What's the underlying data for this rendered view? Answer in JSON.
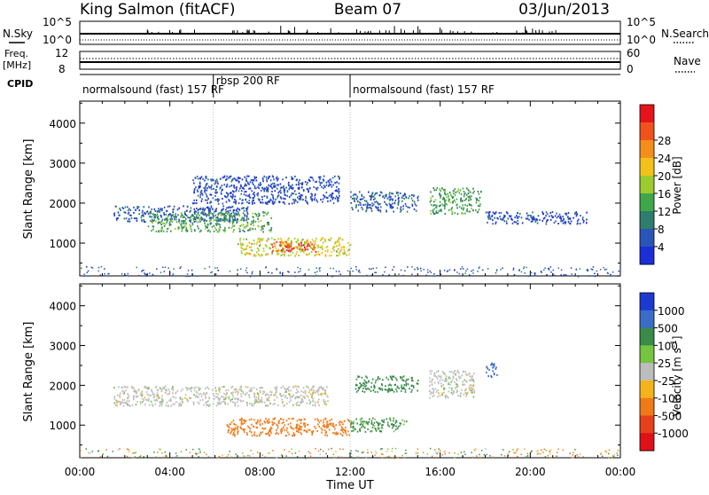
{
  "header": {
    "station": "King Salmon (fitACF)",
    "beam": "Beam 07",
    "date": "03/Jun/2013"
  },
  "panels": {
    "nsky_label": "N.Sky",
    "nsearch_label": "N.Search",
    "freq_label": "Freq.",
    "freq_unit": "[MHz]",
    "nave_label": "Nave",
    "cpid_label": "CPID",
    "nsky_ticks": [
      "10^5",
      "10^0"
    ],
    "nsearch_ticks": [
      "10^5",
      "10^0"
    ],
    "freq_ticks": [
      "12",
      "8"
    ],
    "nave_ticks": [
      "60",
      "0"
    ]
  },
  "cpid_segments": [
    {
      "label": "normalsound (fast) 157 RF",
      "start_hour": 0,
      "end_hour": 5.93
    },
    {
      "label": "rbsp 200 RF",
      "start_hour": 5.93,
      "end_hour": 12.0
    },
    {
      "label": "normalsound (fast) 157 RF",
      "start_hour": 12.0,
      "end_hour": 24
    }
  ],
  "chart_data": [
    {
      "type": "heatmap",
      "name": "power",
      "ylabel": "Slant Range [km]",
      "ylim": [
        180,
        4550
      ],
      "xlim": [
        0,
        24
      ],
      "y_ticks": [
        "1000",
        "2000",
        "3000",
        "4000"
      ],
      "colorbar": {
        "label": "Power [dB]",
        "ticks": [
          "4",
          "8",
          "12",
          "16",
          "20",
          "24",
          "28"
        ],
        "colors": [
          "#1a2fd8",
          "#2a55b8",
          "#2f7d6c",
          "#3fa64a",
          "#9ccb2e",
          "#f2c21a",
          "#f58d1c",
          "#f0521e",
          "#e5141c"
        ]
      },
      "regions": [
        {
          "start_hour": 1.5,
          "end_hour": 7.5,
          "range_min": 1550,
          "range_max": 1950,
          "value": 5
        },
        {
          "start_hour": 3.0,
          "end_hour": 8.5,
          "range_min": 1300,
          "range_max": 1800,
          "value": 12
        },
        {
          "start_hour": 7.0,
          "end_hour": 12.0,
          "range_min": 700,
          "range_max": 1150,
          "value": 18
        },
        {
          "start_hour": 8.5,
          "end_hour": 10.5,
          "range_min": 800,
          "range_max": 1050,
          "value": 28
        },
        {
          "start_hour": 5.0,
          "end_hour": 11.5,
          "range_min": 2000,
          "range_max": 2700,
          "value": 4
        },
        {
          "start_hour": 12.0,
          "end_hour": 15.0,
          "range_min": 1800,
          "range_max": 2300,
          "value": 6
        },
        {
          "start_hour": 15.5,
          "end_hour": 17.8,
          "range_min": 1750,
          "range_max": 2400,
          "value": 12
        },
        {
          "start_hour": 18.0,
          "end_hour": 22.5,
          "range_min": 1500,
          "range_max": 1800,
          "value": 4
        }
      ]
    },
    {
      "type": "heatmap",
      "name": "velocity",
      "ylabel": "Slant Range [km]",
      "ylim": [
        180,
        4550
      ],
      "xlim": [
        0,
        24
      ],
      "y_ticks": [
        "1000",
        "2000",
        "3000",
        "4000"
      ],
      "x_ticks": [
        "00:00",
        "04:00",
        "08:00",
        "12:00",
        "16:00",
        "20:00",
        "00:00"
      ],
      "xlabel": "Time UT",
      "colorbar": {
        "label": "Velocity [m s^-1]",
        "ticks": [
          "1000",
          "500",
          "100",
          "25",
          "-25",
          "-100",
          "-500",
          "-1000"
        ],
        "colors": [
          "#1c3ad0",
          "#3b6cc8",
          "#3a8a4a",
          "#76c442",
          "#bdbdbd",
          "#f4b41c",
          "#f07a18",
          "#e6401c",
          "#e01018"
        ]
      },
      "regions": [
        {
          "start_hour": 1.5,
          "end_hour": 11.0,
          "range_min": 1500,
          "range_max": 2000,
          "value": 0
        },
        {
          "start_hour": 6.5,
          "end_hour": 12.0,
          "range_min": 750,
          "range_max": 1200,
          "value": -200
        },
        {
          "start_hour": 12.0,
          "end_hour": 14.5,
          "range_min": 850,
          "range_max": 1200,
          "value": 120
        },
        {
          "start_hour": 12.2,
          "end_hour": 15.0,
          "range_min": 1850,
          "range_max": 2250,
          "value": 250
        },
        {
          "start_hour": 15.5,
          "end_hour": 17.5,
          "range_min": 1700,
          "range_max": 2400,
          "value": 0
        },
        {
          "start_hour": 18.0,
          "end_hour": 18.5,
          "range_min": 2200,
          "range_max": 2600,
          "value": 800
        }
      ]
    }
  ]
}
